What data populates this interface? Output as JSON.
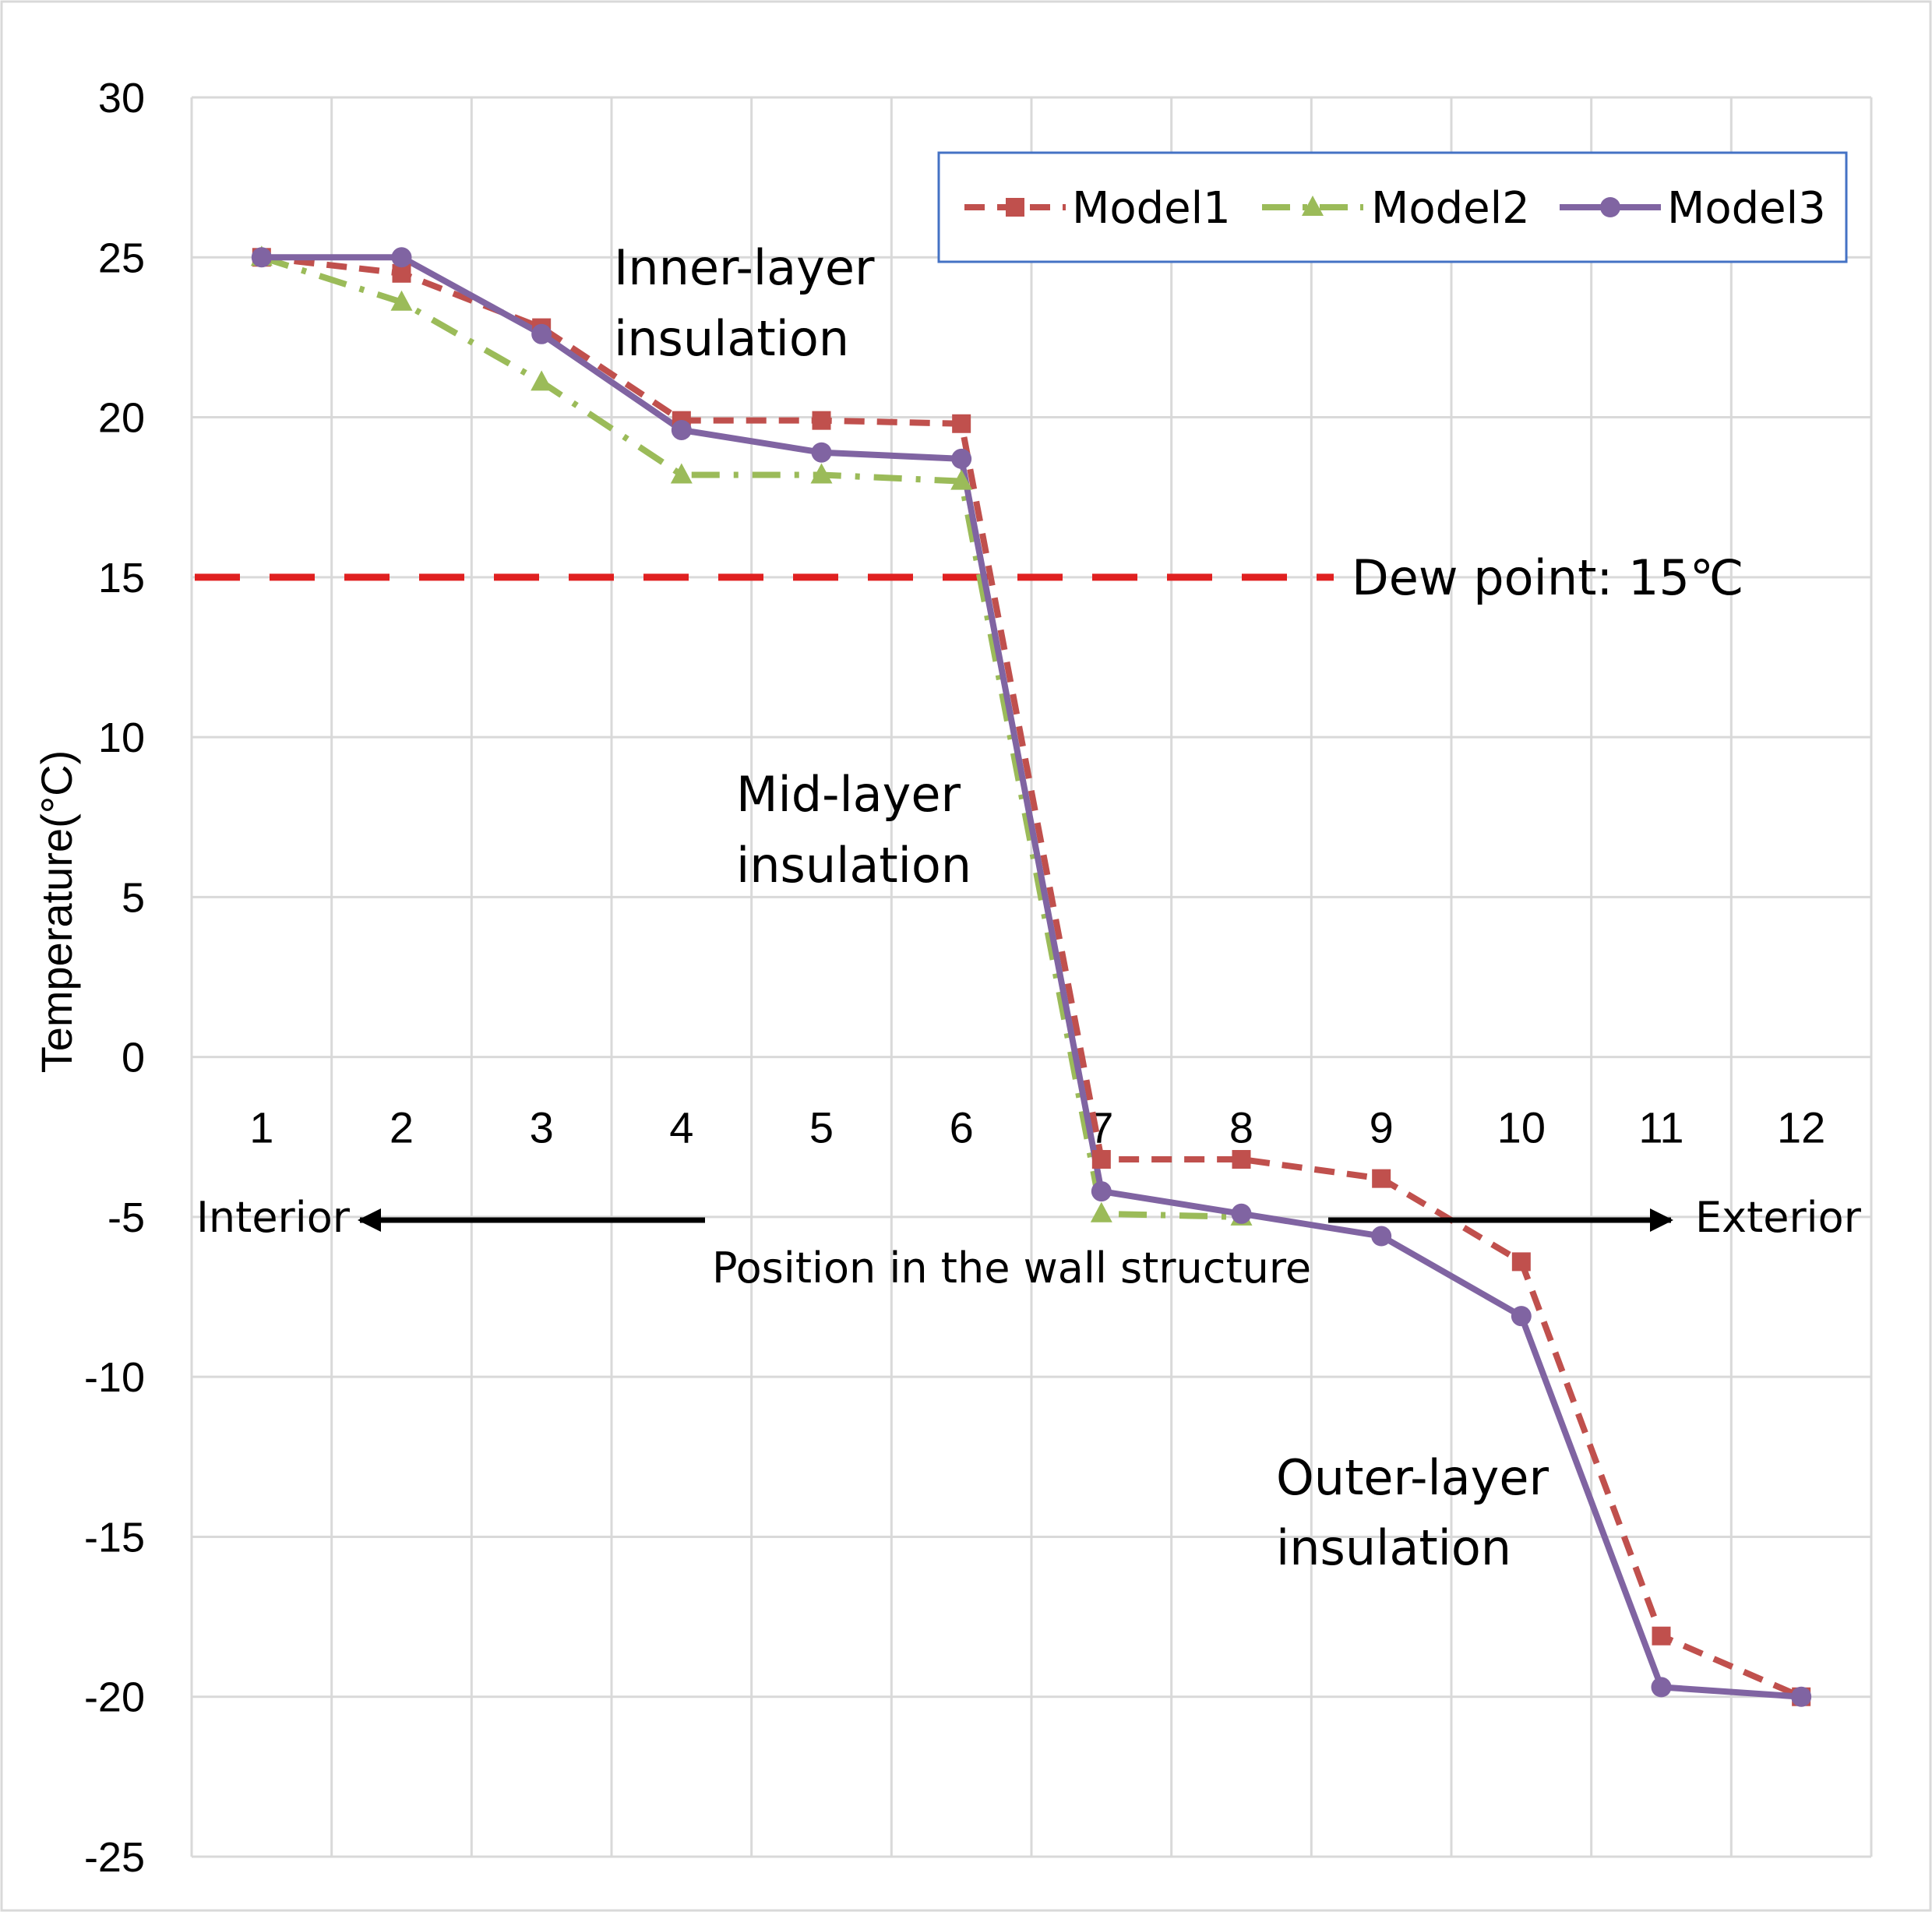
{
  "chart_data": {
    "type": "line",
    "title": "",
    "xlabel": "Position in the wall structure",
    "ylabel": "Temperature(°C)",
    "ylim": [
      -25,
      30
    ],
    "yticks": [
      30,
      25,
      20,
      15,
      10,
      5,
      0,
      -5,
      -10,
      -15,
      -20,
      -25
    ],
    "categories": [
      "1",
      "2",
      "3",
      "4",
      "5",
      "6",
      "7",
      "8",
      "9",
      "10",
      "11",
      "12"
    ],
    "grid": true,
    "legend": {
      "position": "top-right",
      "entries": [
        "Model1",
        "Model2",
        "Model3"
      ]
    },
    "series": [
      {
        "name": "Model1",
        "color": "#c0504d",
        "line": "dashed",
        "marker": "square",
        "values": [
          25,
          24.5,
          22.8,
          19.9,
          19.9,
          19.8,
          -3.2,
          -3.2,
          -3.8,
          -6.4,
          -18.1,
          -20
        ]
      },
      {
        "name": "Model2",
        "color": "#9bbb59",
        "line": "dash-dot",
        "marker": "triangle",
        "values": [
          25,
          23.6,
          21.1,
          18.2,
          18.2,
          18.0,
          -4.9,
          -5.0,
          null,
          null,
          null,
          null
        ]
      },
      {
        "name": "Model3",
        "color": "#8064a2",
        "line": "solid",
        "marker": "circle",
        "values": [
          25,
          25,
          22.6,
          19.6,
          18.9,
          18.7,
          -4.2,
          -4.9,
          -5.6,
          -8.1,
          -19.7,
          -20
        ]
      }
    ],
    "reference_line": {
      "value": 15,
      "color": "#e02020",
      "label": "Dew point: 15℃"
    },
    "annotations": {
      "inner": [
        "Inner-layer",
        "insulation"
      ],
      "mid": [
        "Mid-layer",
        "insulation"
      ],
      "outer": [
        "Outer-layer",
        "insulation"
      ],
      "interior": "Interior",
      "exterior": "Exterior"
    }
  }
}
